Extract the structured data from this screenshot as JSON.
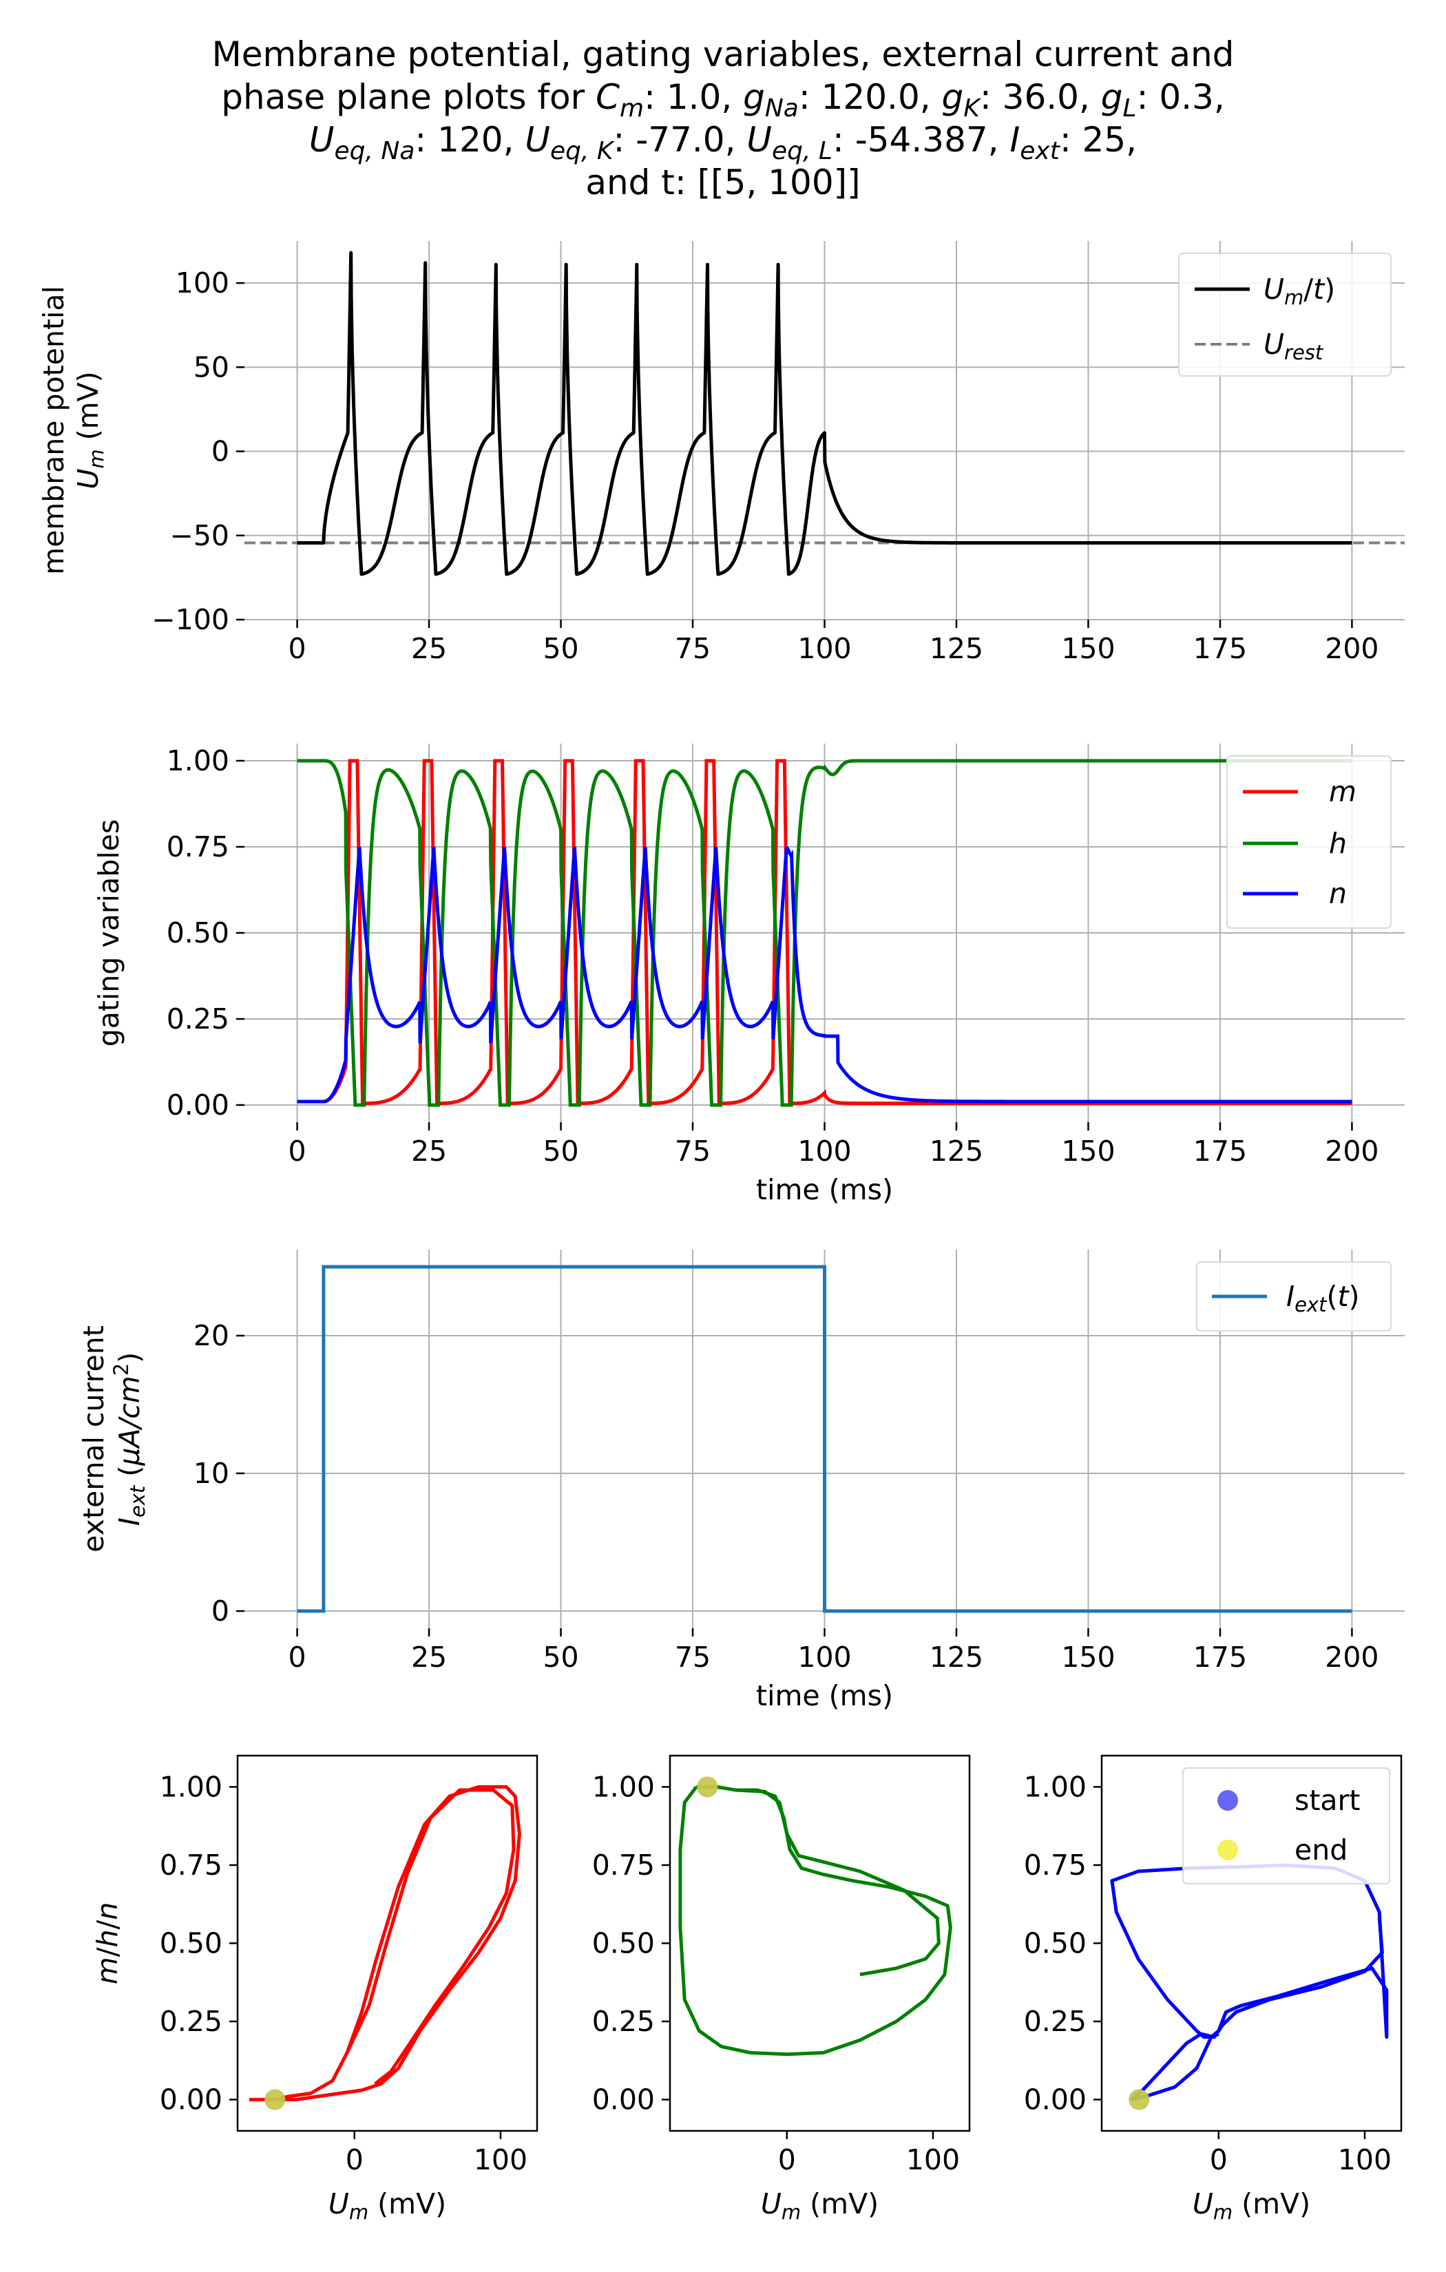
{
  "title": {
    "parts": [
      [
        [
          "Membrane potential, gating variables, external current and",
          "n"
        ]
      ],
      [
        [
          "phase plane plots for ",
          "n"
        ],
        [
          "C",
          "i"
        ],
        [
          "m",
          "si"
        ],
        [
          ": 1.0, ",
          "n"
        ],
        [
          "g",
          "i"
        ],
        [
          "Na",
          "si"
        ],
        [
          ": 120.0, ",
          "n"
        ],
        [
          "g",
          "i"
        ],
        [
          "K",
          "si"
        ],
        [
          ": 36.0, ",
          "n"
        ],
        [
          "g",
          "i"
        ],
        [
          "L",
          "si"
        ],
        [
          ": 0.3,",
          "n"
        ]
      ],
      [
        [
          "U",
          "i"
        ],
        [
          "eq, Na",
          "si"
        ],
        [
          ": 120, ",
          "n"
        ],
        [
          "U",
          "i"
        ],
        [
          "eq, K",
          "si"
        ],
        [
          ": -77.0, ",
          "n"
        ],
        [
          "U",
          "i"
        ],
        [
          "eq, L",
          "si"
        ],
        [
          ": -54.387, ",
          "n"
        ],
        [
          "I",
          "i"
        ],
        [
          "ext",
          "si"
        ],
        [
          ": 25,",
          "n"
        ]
      ],
      [
        [
          "and t: [[5, 100]]",
          "n"
        ]
      ]
    ]
  },
  "colors": {
    "um": "#000000",
    "urest": "#808080",
    "m": "#ff0000",
    "h": "#008000",
    "n": "#0000ff",
    "iext": "#1f77b4",
    "start": "#3333ee",
    "end": "#eeee22",
    "grid": "#b0b0b0"
  },
  "chart_data": [
    {
      "id": "membrane",
      "type": "line",
      "xlim": [
        -10,
        210
      ],
      "ylim": [
        -100,
        125
      ],
      "xticks": [
        "0",
        "25",
        "50",
        "75",
        "100",
        "125",
        "150",
        "175",
        "200"
      ],
      "yticks": [
        "−100",
        "−50",
        "0",
        "50",
        "100"
      ],
      "ylabel_line1": "membrane potential",
      "ylabel_line2": [
        [
          "U",
          "i"
        ],
        [
          "m",
          "si"
        ],
        [
          " (mV)",
          "n"
        ]
      ],
      "xlabel": "",
      "grid": true,
      "legend": "top-right",
      "series": [
        {
          "name": [
            [
              "U",
              "i"
            ],
            [
              "m",
              "si"
            ],
            [
              "/",
              "n"
            ],
            [
              "t",
              "i"
            ],
            [
              ")",
              "n"
            ]
          ],
          "name_prefix": "",
          "style": "solid",
          "color_key": "um"
        },
        {
          "name": [
            [
              "U",
              "i"
            ],
            [
              "rest",
              "si"
            ]
          ],
          "style": "dashed",
          "value": -54.4,
          "color_key": "urest"
        }
      ],
      "spike_times": [
        10.2,
        24.3,
        37.7,
        51.0,
        64.4,
        77.8,
        91.2
      ],
      "spike_peaks": [
        118,
        112,
        111,
        111,
        111,
        111,
        111
      ],
      "trough": -73,
      "rest": -54.4,
      "pre_spike_level": 11,
      "final_bump_peak": -5.5
    },
    {
      "id": "gating",
      "type": "line",
      "xlim": [
        -10,
        210
      ],
      "ylim": [
        -0.05,
        1.05
      ],
      "xticks": [
        "0",
        "25",
        "50",
        "75",
        "100",
        "125",
        "150",
        "175",
        "200"
      ],
      "yticks": [
        "0.00",
        "0.25",
        "0.50",
        "0.75",
        "1.00"
      ],
      "ylabel": "gating variables",
      "xlabel": "time (ms)",
      "grid": true,
      "legend": "top-right",
      "series": [
        {
          "name": "m",
          "color_key": "m",
          "rest": 0.05,
          "peak": 1.0
        },
        {
          "name": "h",
          "color_key": "h",
          "rest": 1.0,
          "min": 0.0
        },
        {
          "name": "n",
          "color_key": "n",
          "rest": 0.0,
          "peak": 0.75,
          "trough": 0.2
        }
      ]
    },
    {
      "id": "current",
      "type": "line",
      "xlim": [
        -10,
        210
      ],
      "ylim": [
        -1.25,
        26.25
      ],
      "xticks": [
        "0",
        "25",
        "50",
        "75",
        "100",
        "125",
        "150",
        "175",
        "200"
      ],
      "yticks": [
        "0",
        "10",
        "20"
      ],
      "ylabel_line1": "external current",
      "ylabel_line2": [
        [
          "I",
          "i"
        ],
        [
          "ext",
          "si"
        ],
        [
          " (",
          "n"
        ],
        [
          "μA/cm",
          "i"
        ],
        [
          "2",
          "sup"
        ],
        [
          ")",
          "n"
        ]
      ],
      "xlabel": "time (ms)",
      "grid": true,
      "legend": "top-right",
      "series": [
        {
          "name": [
            [
              "I",
              "i"
            ],
            [
              "ext",
              "si"
            ],
            [
              "(",
              "n"
            ],
            [
              "t",
              "i"
            ],
            [
              ")",
              "n"
            ]
          ],
          "color_key": "iext",
          "x": [
            0,
            5,
            5,
            100,
            100,
            200
          ],
          "y": [
            0,
            0,
            25,
            25,
            0,
            0
          ]
        }
      ]
    },
    {
      "id": "phase",
      "type": "scatter",
      "xlim": [
        -80,
        125
      ],
      "ylim": [
        -0.1,
        1.1
      ],
      "xticks": [
        "0",
        "100"
      ],
      "yticks": [
        "0.00",
        "0.25",
        "0.50",
        "0.75",
        "1.00"
      ],
      "ylabel": [
        [
          "m",
          "i"
        ],
        [
          "/",
          "n"
        ],
        [
          "h",
          "i"
        ],
        [
          "/",
          "n"
        ],
        [
          "n",
          "i"
        ]
      ],
      "xlabel": [
        [
          "U",
          "i"
        ],
        [
          "m",
          "si"
        ],
        [
          " (mV)",
          "n"
        ]
      ],
      "legend": "top-right",
      "legend_entries": [
        {
          "name": "start",
          "color_key": "start"
        },
        {
          "name": "end",
          "color_key": "end"
        }
      ],
      "points": {
        "start_m": [
          -54.4,
          0.0
        ],
        "end_m": [
          -54.4,
          0.0
        ],
        "start_h": [
          -54.4,
          1.0
        ],
        "end_h": [
          -54.4,
          1.0
        ],
        "start_n": [
          -54.4,
          0.0
        ],
        "end_n": [
          -54.4,
          0.0
        ]
      }
    }
  ]
}
